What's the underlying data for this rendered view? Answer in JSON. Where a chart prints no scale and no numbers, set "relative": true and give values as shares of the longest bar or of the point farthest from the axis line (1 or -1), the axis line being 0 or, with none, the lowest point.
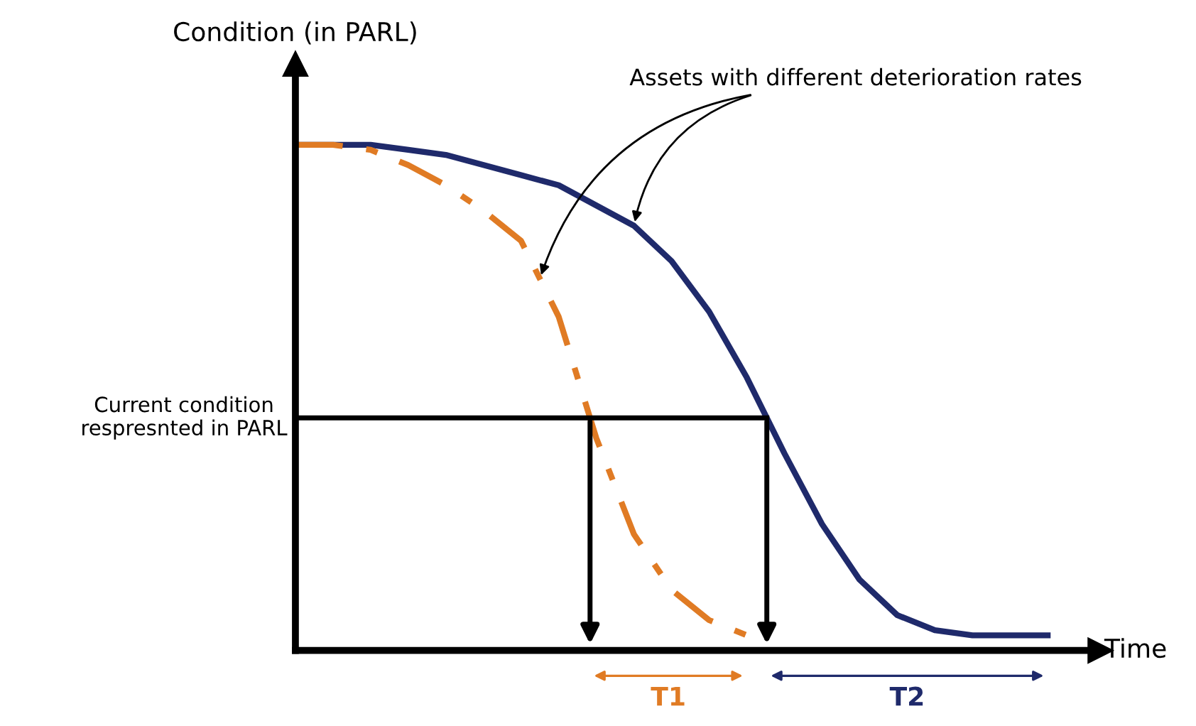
{
  "chart_data": {
    "type": "line",
    "relative": true,
    "xlabel": "Time",
    "ylabel": "Condition (in PARL)",
    "categories": [
      null,
      null,
      null,
      null,
      null,
      null,
      null,
      null,
      null,
      null,
      null,
      null,
      null,
      null,
      null,
      null,
      null,
      null,
      null,
      null,
      null
    ],
    "series": [
      {
        "color": "#1f2a6b",
        "line_style": "solid",
        "values": [
          1.0,
          1.0,
          1.0,
          0.99,
          0.98,
          0.96,
          0.94,
          0.92,
          0.88,
          0.84,
          0.77,
          0.67,
          0.54,
          0.39,
          0.25,
          0.14,
          0.07,
          0.04,
          0.03,
          0.03,
          0.03
        ]
      },
      {
        "color": "#e07b24",
        "line_style": "dashed",
        "values": [
          1.0,
          1.0,
          0.99,
          0.96,
          0.92,
          0.87,
          0.81,
          0.66,
          0.42,
          0.23,
          0.12,
          0.06,
          0.03,
          null,
          null,
          null,
          null,
          null,
          null,
          null,
          null
        ]
      }
    ],
    "ref_lines": [
      {
        "axis": "y",
        "value": 0.46,
        "label": "Current condition respresnted in PARL",
        "color": "#000000"
      }
    ],
    "annotations": [
      "Assets with different deterioration rates",
      "T1",
      "T2"
    ],
    "grid": false,
    "legend": false
  }
}
